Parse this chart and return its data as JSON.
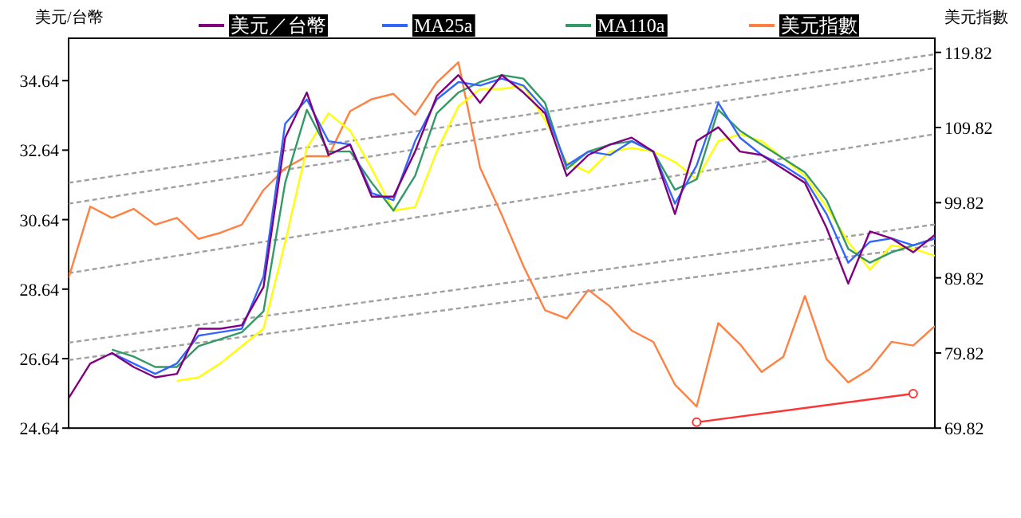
{
  "chart_data": {
    "type": "line",
    "ylabel": "美元/台幣",
    "y2label": "美元指數",
    "categories": [
      null,
      null,
      null,
      null,
      null,
      null,
      null,
      null,
      null,
      null,
      null,
      null,
      null,
      null,
      null,
      null,
      null,
      null,
      null,
      null,
      null,
      null,
      null,
      null,
      null,
      null,
      null,
      null,
      null,
      null,
      null,
      null,
      null,
      null,
      null,
      null,
      null,
      null,
      null,
      null,
      null
    ],
    "ylim": [
      24.64,
      35.86
    ],
    "yticks": [
      24.64,
      26.64,
      28.64,
      30.64,
      32.64,
      34.64
    ],
    "y2lim": [
      69.82,
      121.7
    ],
    "y2ticks": [
      69.82,
      79.82,
      89.82,
      99.82,
      109.82,
      119.82
    ],
    "legend": "top",
    "line_style": "solid",
    "series": [
      {
        "name": "美元／台幣",
        "color": "#800080",
        "values": [
          25.5,
          26.5,
          26.8,
          26.4,
          26.1,
          26.2,
          27.5,
          27.5,
          27.6,
          28.7,
          33.0,
          34.3,
          32.5,
          32.8,
          31.3,
          31.3,
          32.6,
          34.2,
          34.8,
          34.0,
          34.8,
          34.3,
          33.7,
          31.9,
          32.5,
          32.8,
          33.0,
          32.6,
          30.8,
          32.9,
          33.3,
          32.6,
          32.5,
          32.1,
          31.7,
          30.4,
          28.8,
          30.3,
          30.1,
          29.7,
          30.2
        ]
      },
      {
        "name": "MA25a",
        "color": "#3366ff",
        "values": [
          null,
          null,
          26.8,
          26.5,
          26.2,
          26.5,
          27.3,
          27.4,
          27.5,
          29.0,
          33.4,
          34.1,
          32.9,
          32.8,
          31.4,
          31.2,
          32.9,
          34.1,
          34.6,
          34.5,
          34.7,
          34.5,
          33.8,
          32.2,
          32.6,
          32.5,
          32.9,
          32.6,
          31.1,
          32.2,
          34.0,
          33.0,
          32.5,
          32.2,
          31.8,
          30.8,
          29.4,
          30.0,
          30.1,
          29.9,
          30.1
        ]
      },
      {
        "name": "MA110a",
        "color": "#339966",
        "values": [
          null,
          null,
          26.9,
          26.7,
          26.4,
          26.4,
          27.0,
          27.2,
          27.4,
          28.0,
          31.7,
          33.8,
          32.6,
          32.6,
          31.7,
          30.9,
          31.9,
          33.7,
          34.3,
          34.6,
          34.8,
          34.7,
          34.0,
          32.1,
          32.6,
          32.8,
          32.9,
          32.6,
          31.5,
          31.8,
          33.8,
          33.2,
          32.8,
          32.4,
          32.0,
          31.2,
          29.8,
          29.4,
          29.7,
          29.9,
          30.1
        ]
      },
      {
        "color": "#ffff00",
        "values": [
          null,
          null,
          null,
          null,
          null,
          26.0,
          26.1,
          26.5,
          27.0,
          27.5,
          30.0,
          32.7,
          33.7,
          33.2,
          32.1,
          30.9,
          31.0,
          32.6,
          33.9,
          34.4,
          34.4,
          34.5,
          33.5,
          32.3,
          32.0,
          32.6,
          32.7,
          32.6,
          32.3,
          31.8,
          32.9,
          33.1,
          32.9,
          32.4,
          31.9,
          31.0,
          30.0,
          29.2,
          29.9,
          29.8,
          29.6
        ]
      },
      {
        "name": "美元指數",
        "axis": "y2",
        "color": "#ff8040",
        "values": [
          89.8,
          99.3,
          97.8,
          99.0,
          96.9,
          97.8,
          95.0,
          95.8,
          96.9,
          101.5,
          104.4,
          106.0,
          106.0,
          112.0,
          113.6,
          114.3,
          111.5,
          115.8,
          118.5,
          104.5,
          98.2,
          91.4,
          85.5,
          84.4,
          88.2,
          86.0,
          82.8,
          81.3,
          75.6,
          72.7,
          83.8,
          81.0,
          77.3,
          79.3,
          87.4,
          79.0,
          75.9,
          77.7,
          81.3,
          80.8,
          83.4
        ]
      },
      {
        "axis": "y2",
        "color": "#ff3333",
        "marker": "circle",
        "values": [
          null,
          null,
          null,
          null,
          null,
          null,
          null,
          null,
          null,
          null,
          null,
          null,
          null,
          null,
          null,
          null,
          null,
          null,
          null,
          null,
          null,
          null,
          null,
          null,
          null,
          null,
          null,
          null,
          null,
          70.6,
          null,
          null,
          null,
          null,
          null,
          null,
          null,
          null,
          null,
          74.4,
          null
        ]
      },
      {
        "color": "#a0a0a0",
        "line_style": "dashed",
        "values": [
          31.7,
          null,
          null,
          null,
          null,
          null,
          null,
          null,
          null,
          null,
          null,
          null,
          null,
          null,
          null,
          null,
          null,
          null,
          null,
          null,
          null,
          null,
          null,
          null,
          null,
          null,
          null,
          null,
          null,
          null,
          null,
          null,
          null,
          null,
          null,
          null,
          null,
          null,
          null,
          null,
          35.4
        ]
      },
      {
        "color": "#a0a0a0",
        "line_style": "dashed",
        "values": [
          31.1,
          null,
          null,
          null,
          null,
          null,
          null,
          null,
          null,
          null,
          null,
          null,
          null,
          null,
          null,
          null,
          null,
          null,
          null,
          null,
          null,
          null,
          null,
          null,
          null,
          null,
          null,
          null,
          null,
          null,
          null,
          null,
          null,
          null,
          null,
          null,
          null,
          null,
          null,
          null,
          35.0
        ]
      },
      {
        "color": "#a0a0a0",
        "line_style": "dashed",
        "values": [
          29.1,
          null,
          null,
          null,
          null,
          null,
          null,
          null,
          null,
          null,
          null,
          null,
          null,
          null,
          null,
          null,
          null,
          null,
          null,
          null,
          null,
          null,
          null,
          null,
          null,
          null,
          null,
          null,
          null,
          null,
          null,
          null,
          null,
          null,
          null,
          null,
          null,
          null,
          null,
          null,
          33.1
        ]
      },
      {
        "color": "#a0a0a0",
        "line_style": "dashed",
        "values": [
          27.1,
          null,
          null,
          null,
          null,
          null,
          null,
          null,
          null,
          null,
          null,
          null,
          null,
          null,
          null,
          null,
          null,
          null,
          null,
          null,
          null,
          null,
          null,
          null,
          null,
          null,
          null,
          null,
          null,
          null,
          null,
          null,
          null,
          null,
          null,
          null,
          null,
          null,
          null,
          null,
          30.5
        ]
      },
      {
        "color": "#a0a0a0",
        "line_style": "dashed",
        "values": [
          26.6,
          null,
          null,
          null,
          null,
          null,
          null,
          null,
          null,
          null,
          null,
          null,
          null,
          null,
          null,
          null,
          null,
          null,
          null,
          null,
          null,
          null,
          null,
          null,
          null,
          null,
          null,
          null,
          null,
          null,
          null,
          null,
          null,
          null,
          null,
          null,
          null,
          null,
          null,
          null,
          29.9
        ]
      }
    ]
  }
}
